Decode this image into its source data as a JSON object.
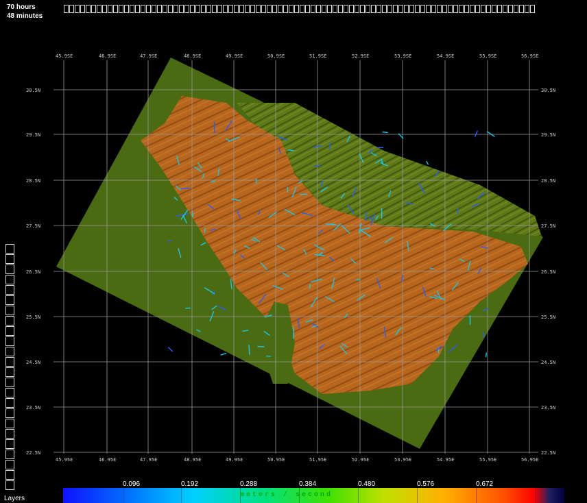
{
  "time_display": {
    "line1": "70 hours",
    "line2": "48 minutes"
  },
  "timeline": {
    "cells": 86
  },
  "layers": {
    "label": "Layers",
    "cells": 24
  },
  "map": {
    "lon_labels_top": [
      "45.9SE",
      "46.9SE",
      "47.9SE",
      "48.9SE",
      "49.9SE",
      "50.9SE",
      "51.9SE",
      "52.9SE",
      "53.9SE",
      "54.9SE",
      "55.9SE",
      "56.9SE"
    ],
    "lon_labels_bottom": [
      "45.95E",
      "46.95E",
      "47.95E",
      "48.95E",
      "49.95E",
      "50.95E",
      "51.95E",
      "52.95E",
      "53.95E",
      "54.95E",
      "55.95E",
      "56.95E"
    ],
    "lat_labels_left": [
      "30.5N",
      "29.5N",
      "28.5N",
      "27.5N",
      "26.5N",
      "25.5N",
      "24.5N",
      "23.5N",
      "22.5N"
    ],
    "lat_labels_right": [
      "30.5N",
      "29.5N",
      "28.5N",
      "27.5N",
      "26.5N",
      "25.5N",
      "24.5N",
      "23.5N",
      "22.5N"
    ],
    "colors": {
      "land": "#4a6b12",
      "gulf": "#b8661d",
      "grid": "#9a9a9a",
      "vectors": "#19c7e6"
    }
  },
  "legend": {
    "ticks": [
      "0.096",
      "0.192",
      "0.288",
      "0.384",
      "0.480",
      "0.576",
      "0.672"
    ],
    "unit_label": "meters / second"
  }
}
